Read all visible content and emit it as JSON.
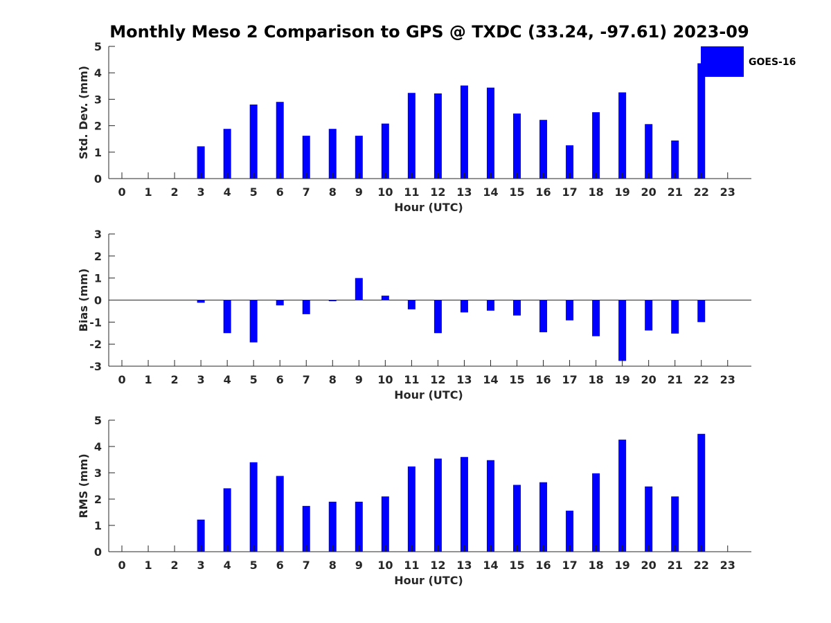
{
  "figure": {
    "title": "Monthly Meso 2 Comparison to GPS @ TXDC (33.24, -97.61) 2023-09",
    "bar_color": "#0000ff",
    "axis_color": "#262626"
  },
  "legend": {
    "label": "GOES-16",
    "color": "#0000ff",
    "position": "top-right"
  },
  "chart_data": [
    {
      "type": "bar",
      "title": "Monthly Meso 2 Comparison to GPS @ TXDC (33.24, -97.61) 2023-09",
      "xlabel": "Hour (UTC)",
      "ylabel": "Std. Dev. (mm)",
      "ylim": [
        0,
        5
      ],
      "yticks": [
        0,
        1,
        2,
        3,
        4,
        5
      ],
      "xlim": [
        -0.5,
        23.9
      ],
      "categories": [
        0,
        1,
        2,
        3,
        4,
        5,
        6,
        7,
        8,
        9,
        10,
        11,
        12,
        13,
        14,
        15,
        16,
        17,
        18,
        19,
        20,
        21,
        22,
        23
      ],
      "values": [
        null,
        null,
        null,
        1.22,
        1.88,
        2.8,
        2.9,
        1.62,
        1.88,
        1.62,
        2.08,
        3.24,
        3.22,
        3.52,
        3.44,
        2.46,
        2.22,
        1.26,
        2.51,
        3.26,
        2.06,
        1.44,
        4.36,
        null
      ],
      "series_name": "GOES-16"
    },
    {
      "type": "bar",
      "xlabel": "Hour (UTC)",
      "ylabel": "Bias (mm)",
      "ylim": [
        -3,
        3
      ],
      "yticks": [
        -3,
        -2,
        -1,
        0,
        1,
        2,
        3
      ],
      "xlim": [
        -0.5,
        23.9
      ],
      "zero_line": true,
      "categories": [
        0,
        1,
        2,
        3,
        4,
        5,
        6,
        7,
        8,
        9,
        10,
        11,
        12,
        13,
        14,
        15,
        16,
        17,
        18,
        19,
        20,
        21,
        22,
        23
      ],
      "values": [
        null,
        null,
        null,
        -0.12,
        -1.5,
        -1.92,
        -0.24,
        -0.64,
        -0.05,
        1.0,
        0.2,
        -0.42,
        -1.5,
        -0.56,
        -0.48,
        -0.7,
        -1.46,
        -0.92,
        -1.64,
        -2.76,
        -1.38,
        -1.52,
        -1.0,
        null
      ],
      "series_name": "GOES-16"
    },
    {
      "type": "bar",
      "xlabel": "Hour (UTC)",
      "ylabel": "RMS (mm)",
      "ylim": [
        0,
        5
      ],
      "yticks": [
        0,
        1,
        2,
        3,
        4,
        5
      ],
      "xlim": [
        -0.5,
        23.9
      ],
      "categories": [
        0,
        1,
        2,
        3,
        4,
        5,
        6,
        7,
        8,
        9,
        10,
        11,
        12,
        13,
        14,
        15,
        16,
        17,
        18,
        19,
        20,
        21,
        22,
        23
      ],
      "values": [
        null,
        null,
        null,
        1.22,
        2.41,
        3.4,
        2.88,
        1.74,
        1.9,
        1.9,
        2.1,
        3.24,
        3.54,
        3.6,
        3.48,
        2.54,
        2.64,
        1.56,
        2.98,
        4.26,
        2.48,
        2.1,
        4.48,
        null
      ],
      "series_name": "GOES-16"
    }
  ]
}
